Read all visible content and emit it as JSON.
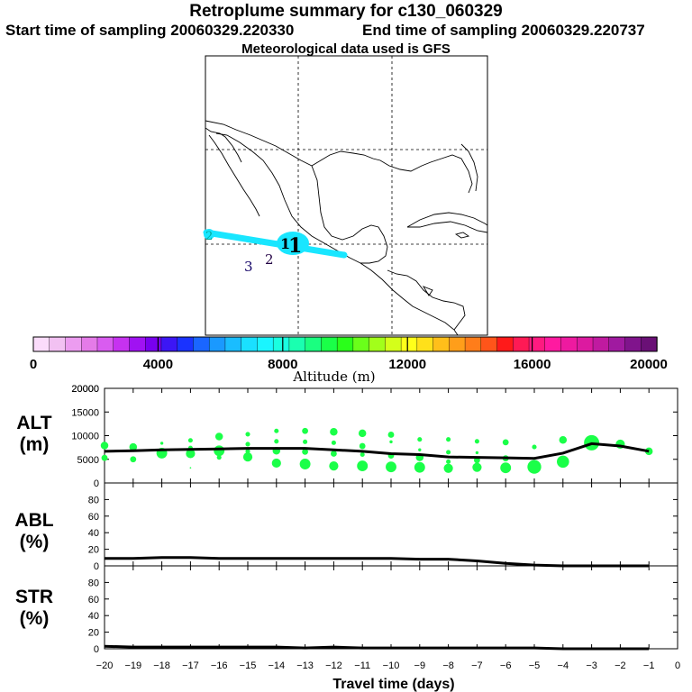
{
  "header": {
    "title": "Retroplume summary for c130_060329",
    "start_label": "Start time of sampling 20060329.220330",
    "end_label": "End time of sampling 20060329.220737",
    "met_label": "Meteorological data used is GFS"
  },
  "map": {
    "markers": [
      {
        "text": "1",
        "color": "#000000"
      },
      {
        "text": "2",
        "color": "#220044"
      },
      {
        "text": "3",
        "color": "#110066"
      },
      {
        "text": "2",
        "color": "#00aa99"
      }
    ],
    "plume_color": "#19e6ff"
  },
  "colorbar": {
    "title": "Altitude (m)",
    "tick_labels": [
      "0",
      "4000",
      "8000",
      "12000",
      "16000",
      "20000"
    ],
    "colors": [
      "#fbdcfb",
      "#f2c1f2",
      "#ec9cf0",
      "#e47be8",
      "#d95cf0",
      "#c632f0",
      "#a012f2",
      "#7800ee",
      "#3c16f5",
      "#1a33ff",
      "#1a66ff",
      "#1a99ff",
      "#1abdff",
      "#1ae0ff",
      "#1af5ff",
      "#1affe0",
      "#1affb0",
      "#1aff80",
      "#1aff48",
      "#2aff1a",
      "#6aff1a",
      "#a2ff1a",
      "#d4ff1a",
      "#ffff1a",
      "#ffe01a",
      "#ffbf1a",
      "#ff9e1a",
      "#ff7d1a",
      "#ff551a",
      "#ff1a1a",
      "#ff1a55",
      "#ff1a80",
      "#ff1aa0",
      "#ee1aa0",
      "#dc1aa0",
      "#c01aa0",
      "#a01aa0",
      "#80148c",
      "#6a1076"
    ]
  },
  "panels": {
    "alt_label": "ALT\n(m)",
    "abl_label": "ABL\n(%)",
    "str_label": "STR\n(%)",
    "xlabel": "Travel time (days)"
  },
  "chart_data": [
    {
      "type": "line",
      "name": "ALT",
      "ylabel": "ALT (m)",
      "ylim": [
        0,
        20000
      ],
      "yticks": [
        0,
        5000,
        10000,
        15000,
        20000
      ],
      "x": [
        -20,
        -19,
        -18,
        -17,
        -16,
        -15,
        -14,
        -13,
        -12,
        -11,
        -10,
        -9,
        -8,
        -7,
        -6,
        -5,
        -4,
        -3,
        -2,
        -1
      ],
      "values": [
        6700,
        6800,
        7000,
        7100,
        7200,
        7300,
        7300,
        7300,
        7000,
        6700,
        6200,
        6000,
        5500,
        5400,
        5300,
        5200,
        6300,
        8300,
        7800,
        6700
      ],
      "cluster_color": "#1aff48",
      "clusters": [
        {
          "x": -20,
          "y": 7900,
          "s": 5
        },
        {
          "x": -20,
          "y": 5300,
          "s": 4
        },
        {
          "x": -19,
          "y": 7600,
          "s": 5
        },
        {
          "x": -19,
          "y": 5000,
          "s": 4
        },
        {
          "x": -18,
          "y": 8400,
          "s": 2
        },
        {
          "x": -18,
          "y": 6300,
          "s": 7
        },
        {
          "x": -17,
          "y": 9000,
          "s": 3
        },
        {
          "x": -17,
          "y": 7400,
          "s": 3
        },
        {
          "x": -17,
          "y": 6200,
          "s": 6
        },
        {
          "x": -17,
          "y": 3200,
          "s": 1
        },
        {
          "x": -16,
          "y": 9800,
          "s": 5
        },
        {
          "x": -16,
          "y": 6800,
          "s": 7
        },
        {
          "x": -16,
          "y": 5400,
          "s": 3
        },
        {
          "x": -15,
          "y": 10300,
          "s": 3
        },
        {
          "x": -15,
          "y": 8200,
          "s": 3
        },
        {
          "x": -15,
          "y": 6700,
          "s": 3
        },
        {
          "x": -15,
          "y": 5500,
          "s": 6
        },
        {
          "x": -14,
          "y": 11000,
          "s": 3
        },
        {
          "x": -14,
          "y": 8800,
          "s": 3
        },
        {
          "x": -14,
          "y": 6800,
          "s": 5
        },
        {
          "x": -14,
          "y": 4200,
          "s": 6
        },
        {
          "x": -13,
          "y": 11000,
          "s": 4
        },
        {
          "x": -13,
          "y": 8700,
          "s": 3
        },
        {
          "x": -13,
          "y": 6600,
          "s": 4
        },
        {
          "x": -13,
          "y": 4000,
          "s": 7
        },
        {
          "x": -12,
          "y": 10800,
          "s": 5
        },
        {
          "x": -12,
          "y": 8500,
          "s": 3
        },
        {
          "x": -12,
          "y": 6200,
          "s": 4
        },
        {
          "x": -12,
          "y": 3600,
          "s": 6
        },
        {
          "x": -11,
          "y": 10500,
          "s": 5
        },
        {
          "x": -11,
          "y": 7800,
          "s": 4
        },
        {
          "x": -11,
          "y": 6000,
          "s": 3
        },
        {
          "x": -11,
          "y": 3600,
          "s": 7
        },
        {
          "x": -10,
          "y": 10200,
          "s": 4
        },
        {
          "x": -10,
          "y": 8700,
          "s": 2
        },
        {
          "x": -10,
          "y": 5800,
          "s": 4
        },
        {
          "x": -10,
          "y": 3400,
          "s": 7
        },
        {
          "x": -9,
          "y": 9200,
          "s": 3
        },
        {
          "x": -9,
          "y": 7000,
          "s": 2
        },
        {
          "x": -9,
          "y": 5400,
          "s": 5
        },
        {
          "x": -9,
          "y": 3300,
          "s": 7
        },
        {
          "x": -8,
          "y": 9200,
          "s": 3
        },
        {
          "x": -8,
          "y": 6500,
          "s": 3
        },
        {
          "x": -8,
          "y": 4500,
          "s": 3
        },
        {
          "x": -8,
          "y": 3100,
          "s": 6
        },
        {
          "x": -7,
          "y": 8800,
          "s": 3
        },
        {
          "x": -7,
          "y": 6400,
          "s": 2
        },
        {
          "x": -7,
          "y": 4800,
          "s": 4
        },
        {
          "x": -7,
          "y": 3300,
          "s": 6
        },
        {
          "x": -6,
          "y": 8600,
          "s": 4
        },
        {
          "x": -6,
          "y": 5200,
          "s": 4
        },
        {
          "x": -6,
          "y": 3200,
          "s": 7
        },
        {
          "x": -5,
          "y": 7600,
          "s": 3
        },
        {
          "x": -5,
          "y": 3400,
          "s": 9
        },
        {
          "x": -4,
          "y": 9100,
          "s": 5
        },
        {
          "x": -4,
          "y": 4500,
          "s": 8
        },
        {
          "x": -3,
          "y": 8500,
          "s": 10
        },
        {
          "x": -2,
          "y": 8200,
          "s": 6
        },
        {
          "x": -1,
          "y": 6700,
          "s": 5
        }
      ]
    },
    {
      "type": "line",
      "name": "ABL",
      "ylabel": "ABL (%)",
      "ylim": [
        0,
        100
      ],
      "yticks": [
        0,
        20,
        40,
        60,
        80
      ],
      "x": [
        -20,
        -19,
        -18,
        -17,
        -16,
        -15,
        -14,
        -13,
        -12,
        -11,
        -10,
        -9,
        -8,
        -7,
        -6,
        -5,
        -4,
        -3,
        -2,
        -1
      ],
      "values": [
        9,
        9,
        10,
        10,
        9,
        9,
        9,
        9,
        9,
        9,
        9,
        8,
        8,
        6,
        3,
        1,
        0,
        0,
        0,
        0
      ]
    },
    {
      "type": "line",
      "name": "STR",
      "ylabel": "STR (%)",
      "ylim": [
        0,
        100
      ],
      "yticks": [
        0,
        20,
        40,
        60,
        80
      ],
      "x": [
        -20,
        -19,
        -18,
        -17,
        -16,
        -15,
        -14,
        -13,
        -12,
        -11,
        -10,
        -9,
        -8,
        -7,
        -6,
        -5,
        -4,
        -3,
        -2,
        -1
      ],
      "values": [
        3,
        2,
        2,
        2,
        2,
        2,
        2,
        1,
        2,
        1,
        1,
        1,
        1,
        1,
        1,
        1,
        0,
        0,
        0,
        0
      ],
      "xlim": [
        -20,
        0
      ],
      "xticks": [
        -20,
        -19,
        -18,
        -17,
        -16,
        -15,
        -14,
        -13,
        -12,
        -11,
        -10,
        -9,
        -8,
        -7,
        -6,
        -5,
        -4,
        -3,
        -2,
        -1,
        0
      ],
      "xlabel": "Travel time (days)"
    }
  ]
}
